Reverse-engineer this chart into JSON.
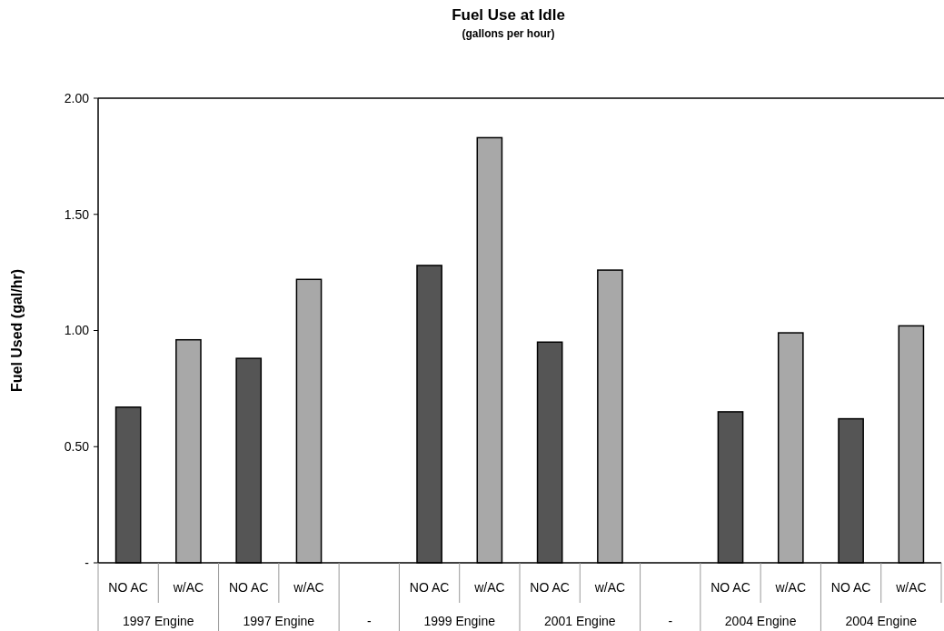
{
  "chart_data": {
    "type": "bar",
    "title": "Fuel Use at Idle",
    "subtitle": "(gallons per hour)",
    "ylabel": "Fuel Used (gal/hr)",
    "categories": [
      "NO AC",
      "w/AC",
      "NO AC",
      "w/AC",
      null,
      "NO AC",
      "w/AC",
      "NO AC",
      "w/AC",
      null,
      "NO AC",
      "w/AC",
      "NO AC",
      "w/AC"
    ],
    "values": [
      0.67,
      0.96,
      0.88,
      1.22,
      null,
      1.28,
      1.83,
      0.95,
      1.26,
      null,
      0.65,
      0.99,
      0.62,
      1.02
    ],
    "colors": [
      "#555555",
      "#a8a8a8",
      "#555555",
      "#a8a8a8",
      null,
      "#555555",
      "#a8a8a8",
      "#555555",
      "#a8a8a8",
      null,
      "#555555",
      "#a8a8a8",
      "#555555",
      "#a8a8a8"
    ],
    "ylim": [
      0,
      2
    ],
    "yticks": [
      {
        "value": 0,
        "label": "-"
      },
      {
        "value": 0.5,
        "label": "0.50"
      },
      {
        "value": 1,
        "label": "1.00"
      },
      {
        "value": 1.5,
        "label": "1.50"
      },
      {
        "value": 2,
        "label": "2.00"
      }
    ],
    "annotations": [
      "1997 Engine",
      "1997 Engine",
      "-",
      "1999 Engine",
      "2001 Engine",
      "-",
      "2004 Engine",
      "2004 Engine"
    ]
  }
}
